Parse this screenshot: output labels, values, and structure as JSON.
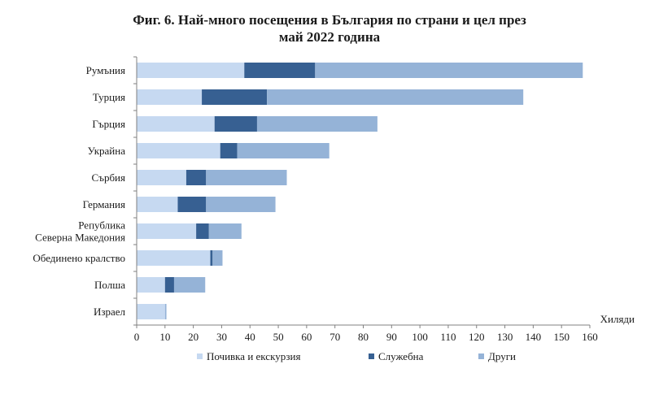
{
  "chart_data": {
    "type": "bar",
    "orientation": "horizontal",
    "stacked": true,
    "title_lines": [
      "Фиг. 6. Най-много посещения в България по страни и цел през",
      "май 2022 година"
    ],
    "categories": [
      [
        "Румъния"
      ],
      [
        "Турция"
      ],
      [
        "Гърция"
      ],
      [
        "Украйна"
      ],
      [
        "Сърбия"
      ],
      [
        "Германия"
      ],
      [
        "Република",
        "Северна Македония"
      ],
      [
        "Обединено кралство"
      ],
      [
        "Полша"
      ],
      [
        "Израел"
      ]
    ],
    "series": [
      {
        "name": "Почивка и екскурзия",
        "color": "#c6d9f1",
        "values": [
          38,
          23,
          27.5,
          29.5,
          17.5,
          14.5,
          21,
          26,
          10,
          10
        ]
      },
      {
        "name": "Служебна",
        "color": "#376092",
        "values": [
          25,
          23,
          15,
          6,
          7,
          10,
          4.5,
          0.8,
          3.2,
          0
        ]
      },
      {
        "name": "Други",
        "color": "#95b3d7",
        "values": [
          94.5,
          90.5,
          42.5,
          32.5,
          28.5,
          24.5,
          11.5,
          3.5,
          11,
          0.5
        ]
      }
    ],
    "xlim": [
      0,
      160
    ],
    "xticks": [
      "0",
      "10",
      "20",
      "30",
      "40",
      "50",
      "60",
      "70",
      "80",
      "90",
      "100",
      "110",
      "120",
      "130",
      "140",
      "150",
      "160"
    ],
    "xunit": "Хиляди",
    "legend_position": "bottom",
    "grid": false
  }
}
